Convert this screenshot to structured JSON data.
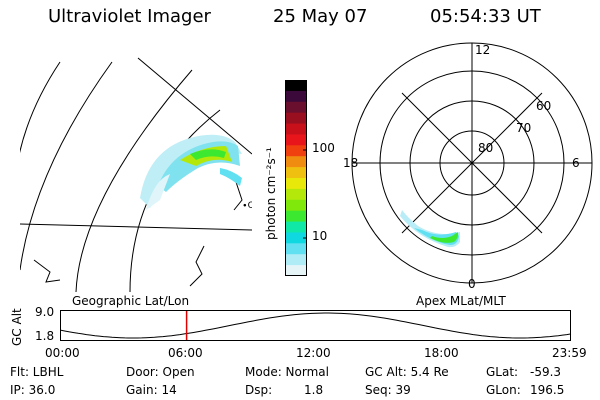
{
  "header": {
    "instrument": "Ultraviolet Imager",
    "date": "25 May 07",
    "time": "05:54:33 UT"
  },
  "left_map": {
    "caption": "Geographic Lat/Lon",
    "coast_label": "∙O"
  },
  "colorbar": {
    "unit_label": "photon cm⁻²s⁻¹",
    "ticks": [
      "100",
      "10"
    ],
    "colors": [
      "#000000",
      "#3c0a3a",
      "#6a0f2e",
      "#9a0f1f",
      "#c8101a",
      "#e8151a",
      "#f04010",
      "#f08c10",
      "#f0c010",
      "#e8e80a",
      "#b4e80a",
      "#80e80a",
      "#3ce830",
      "#10e8a8",
      "#10d8e0",
      "#60e0f0",
      "#b0ecf6",
      "#e6f4f8"
    ]
  },
  "polar": {
    "caption": "Apex MLat/MLT",
    "mlt_labels": [
      "12",
      "18",
      "6",
      "0"
    ],
    "lat_labels": [
      "60",
      "70",
      "80"
    ]
  },
  "altitude": {
    "axis_label": "GC Alt",
    "y_ticks": [
      "9.0",
      "1.8"
    ],
    "x_ticks": [
      "00:00",
      "06:00",
      "12:00",
      "18:00",
      "23:59"
    ],
    "marker_time": "05:54:33",
    "marker_color": "#e00000"
  },
  "footer": {
    "flt": "Flt: LBHL",
    "ip": "IP: 36.0",
    "door": "Door: Open",
    "gain": "Gain: 14",
    "mode": "Mode: Normal",
    "dsp_label": "Dsp:",
    "dsp_value": "1.8",
    "gc_alt": "GC Alt: 5.4 Re",
    "seq": "Seq: 39",
    "glat_label": "GLat:",
    "glat_value": "-59.3",
    "glon_label": "GLon:",
    "glon_value": "196.5"
  }
}
